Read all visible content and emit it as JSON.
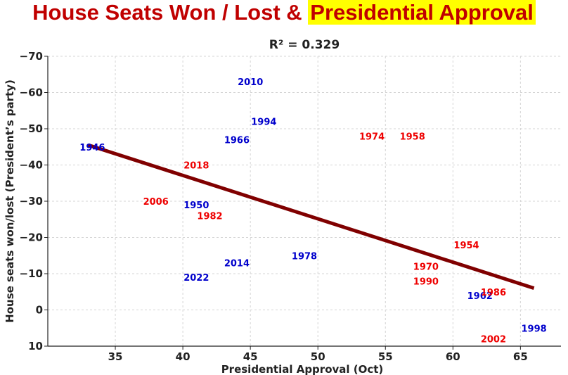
{
  "chart_data": {
    "type": "scatter",
    "title_main": "House Seats Won / Lost &",
    "title_highlight": "Presidential Approval",
    "subtitle": "R² = 0.329",
    "xlabel": "Presidential Approval (Oct)",
    "ylabel": "House seats won/lost (President’s party)",
    "xlim": [
      30,
      68
    ],
    "ylim": [
      10,
      -70
    ],
    "x_ticks": [
      35,
      40,
      45,
      50,
      55,
      60,
      65
    ],
    "y_ticks": [
      -70,
      -60,
      -50,
      -40,
      -30,
      -20,
      -10,
      0,
      10
    ],
    "y_tick_labels": [
      "−70",
      "−60",
      "−50",
      "−40",
      "−30",
      "−20",
      "−10",
      "0",
      "10"
    ],
    "grid": true,
    "colors": {
      "democrat": "#0000cc",
      "republican": "#ee0000",
      "trend": "#800000"
    },
    "trend_line": {
      "x1": 33,
      "y1": -45.5,
      "x2": 66,
      "y2": -6
    },
    "points": [
      {
        "label": "1946",
        "x": 33.3,
        "y": -45,
        "party": "democrat"
      },
      {
        "label": "2010",
        "x": 45,
        "y": -63,
        "party": "democrat"
      },
      {
        "label": "1994",
        "x": 46,
        "y": -52,
        "party": "democrat"
      },
      {
        "label": "1966",
        "x": 44,
        "y": -47,
        "party": "democrat"
      },
      {
        "label": "1974",
        "x": 54,
        "y": -48,
        "party": "republican"
      },
      {
        "label": "1958",
        "x": 57,
        "y": -48,
        "party": "republican"
      },
      {
        "label": "2018",
        "x": 41,
        "y": -40,
        "party": "republican"
      },
      {
        "label": "2006",
        "x": 38,
        "y": -30,
        "party": "republican"
      },
      {
        "label": "1950",
        "x": 41,
        "y": -29,
        "party": "democrat"
      },
      {
        "label": "1982",
        "x": 42,
        "y": -26,
        "party": "republican"
      },
      {
        "label": "1954",
        "x": 61,
        "y": -18,
        "party": "republican"
      },
      {
        "label": "1978",
        "x": 49,
        "y": -15,
        "party": "democrat"
      },
      {
        "label": "2014",
        "x": 44,
        "y": -13,
        "party": "democrat"
      },
      {
        "label": "1970",
        "x": 58,
        "y": -12,
        "party": "republican"
      },
      {
        "label": "2022",
        "x": 41,
        "y": -9,
        "party": "democrat"
      },
      {
        "label": "1990",
        "x": 58,
        "y": -8,
        "party": "republican"
      },
      {
        "label": "1962",
        "x": 62,
        "y": -4,
        "party": "democrat"
      },
      {
        "label": "1986",
        "x": 63,
        "y": -5,
        "party": "republican"
      },
      {
        "label": "1998",
        "x": 66,
        "y": 5,
        "party": "democrat"
      },
      {
        "label": "2002",
        "x": 63,
        "y": 8,
        "party": "republican"
      }
    ]
  }
}
